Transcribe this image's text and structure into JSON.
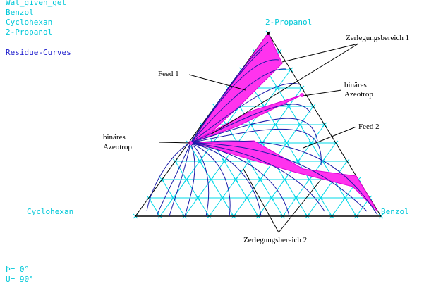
{
  "header_lines": [
    "Wat_given_get",
    "Benzol",
    "Cyclohexan",
    "2-Propanol"
  ],
  "header_title": "Residue-Curves",
  "vertices": {
    "top": "2-Propanol",
    "left": "Cyclohexan",
    "right": "Benzol"
  },
  "annotations": {
    "zerlegung1": "Zerlegungsbereich 1",
    "zerlegung2": "Zerlegungsbereich 2",
    "feed1": "Feed 1",
    "feed2": "Feed 2",
    "azeo_binary_right_line1": "binäres",
    "azeo_binary_right_line2": "Azeotrop",
    "azeo_binary_left_line1": "binäres",
    "azeo_binary_left_line2": "Azeotrop"
  },
  "angles": {
    "line1": "Þ=   0°",
    "line2": "Ü=  90°"
  },
  "colors": {
    "grid": "#00d8e8",
    "curves": "#1a1aa8",
    "region": "#ff33ee",
    "label_cyan": "#00c8d8",
    "label_blue": "#1a1acc"
  }
}
